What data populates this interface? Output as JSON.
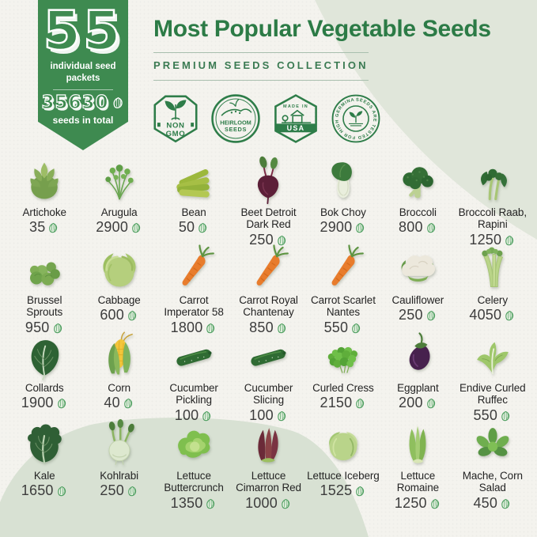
{
  "banner": {
    "packets_count": "55",
    "packets_label": "individual seed packets",
    "seeds_total": "35630",
    "seeds_total_label": "seeds in total"
  },
  "header": {
    "title": "Most Popular Vegetable Seeds",
    "subtitle": "PREMIUM SEEDS COLLECTION"
  },
  "badges": {
    "non_gmo": {
      "line1": "NON",
      "line2": "GMO"
    },
    "heirloom": {
      "line1": "HEIRLOOM",
      "line2": "SEEDS"
    },
    "usa": {
      "line1": "MADE IN",
      "line2": "USA"
    },
    "germination": {
      "ring_text": "SEEDS ARE TESTED FOR HIGH GERMINATION"
    }
  },
  "colors": {
    "brand_green": "#2c7b46",
    "ribbon_green": "#3e8a50",
    "badge_green": "#2e7d49",
    "blob_green": "#e0e6da",
    "blob_green_bottom": "#d8e1d3",
    "background": "#f4f3ee",
    "seed_icon_green": "#4d9e5f",
    "text_dark": "#242424"
  },
  "items": [
    {
      "name": "Artichoke",
      "count": "35",
      "icon": "artichoke"
    },
    {
      "name": "Arugula",
      "count": "2900",
      "icon": "arugula"
    },
    {
      "name": "Bean",
      "count": "50",
      "icon": "bean"
    },
    {
      "name": "Beet Detroit Dark Red",
      "count": "250",
      "icon": "beet"
    },
    {
      "name": "Bok Choy",
      "count": "2900",
      "icon": "bokchoy"
    },
    {
      "name": "Broccoli",
      "count": "800",
      "icon": "broccoli"
    },
    {
      "name": "Broccoli Raab, Rapini",
      "count": "1250",
      "icon": "brocraab"
    },
    {
      "name": "Brussel Sprouts",
      "count": "950",
      "icon": "brussels"
    },
    {
      "name": "Cabbage",
      "count": "600",
      "icon": "cabbage"
    },
    {
      "name": "Carrot Imperator 58",
      "count": "1800",
      "icon": "carrot"
    },
    {
      "name": "Carrot Royal Chantenay",
      "count": "850",
      "icon": "carrot"
    },
    {
      "name": "Carrot Scarlet Nantes",
      "count": "550",
      "icon": "carrot"
    },
    {
      "name": "Cauliflower",
      "count": "250",
      "icon": "cauliflower"
    },
    {
      "name": "Celery",
      "count": "4050",
      "icon": "celery"
    },
    {
      "name": "Collards",
      "count": "1900",
      "icon": "collards"
    },
    {
      "name": "Corn",
      "count": "40",
      "icon": "corn"
    },
    {
      "name": "Cucumber Pickling",
      "count": "100",
      "icon": "cucumber"
    },
    {
      "name": "Cucumber Slicing",
      "count": "100",
      "icon": "cucumber"
    },
    {
      "name": "Curled Cress",
      "count": "2150",
      "icon": "cress"
    },
    {
      "name": "Eggplant",
      "count": "200",
      "icon": "eggplant"
    },
    {
      "name": "Endive Curled Ruffec",
      "count": "550",
      "icon": "endive"
    },
    {
      "name": "Kale",
      "count": "1650",
      "icon": "kale"
    },
    {
      "name": "Kohlrabi",
      "count": "250",
      "icon": "kohlrabi"
    },
    {
      "name": "Lettuce Buttercrunch",
      "count": "1350",
      "icon": "lettuce_butter"
    },
    {
      "name": "Lettuce Cimarron Red",
      "count": "1000",
      "icon": "lettuce_red"
    },
    {
      "name": "Lettuce Iceberg",
      "count": "1525",
      "icon": "lettuce_iceberg"
    },
    {
      "name": "Lettuce Romaine",
      "count": "1250",
      "icon": "lettuce_romaine"
    },
    {
      "name": "Mache, Corn Salad",
      "count": "450",
      "icon": "mache"
    }
  ]
}
